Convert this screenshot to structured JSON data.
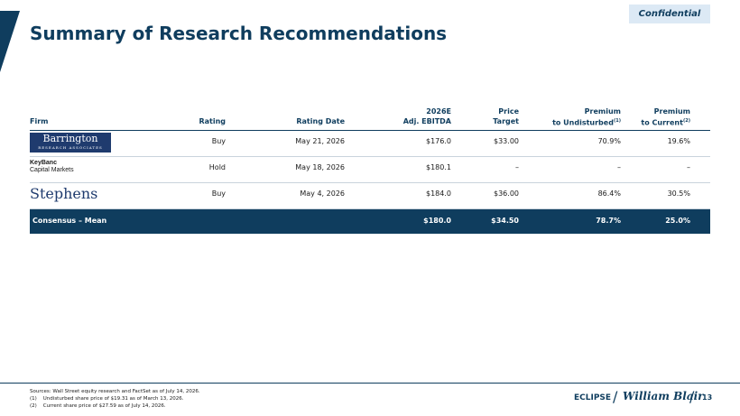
{
  "header": {
    "badge": "Confidential",
    "title": "Summary of Research Recommendations"
  },
  "table": {
    "columns": [
      {
        "lines": [
          "Firm"
        ]
      },
      {
        "lines": [
          "Rating"
        ]
      },
      {
        "lines": [
          "Rating Date"
        ]
      },
      {
        "lines": [
          "2026E",
          "Adj. EBITDA"
        ]
      },
      {
        "lines": [
          "Price",
          "Target"
        ]
      },
      {
        "lines": [
          "Premium",
          "to Undisturbed"
        ],
        "note": "(1)"
      },
      {
        "lines": [
          "Premium",
          "to Current"
        ],
        "note": "(2)"
      }
    ],
    "rows": [
      {
        "firm": {
          "name": "Barrington",
          "sub": "RESEARCH ASSOCIATES"
        },
        "cells": [
          "Buy",
          "May 21, 2026",
          "$176.0",
          "$33.00",
          "70.9%",
          "19.6%"
        ]
      },
      {
        "firm": {
          "name": "KeyBanc",
          "sub": "Capital Markets"
        },
        "cells": [
          "Hold",
          "May 18, 2026",
          "$180.1",
          "–",
          "–",
          "–"
        ]
      },
      {
        "firm": {
          "name": "Stephens"
        },
        "cells": [
          "Buy",
          "May 4, 2026",
          "$184.0",
          "$36.00",
          "86.4%",
          "30.5%"
        ]
      }
    ],
    "summary": {
      "label": "Consensus – Mean",
      "cells": [
        "",
        "",
        "$180.0",
        "$34.50",
        "78.7%",
        "25.0%"
      ]
    }
  },
  "footnotes": [
    "Sources: Wall Street equity research and FactSet as of July 14, 2026.",
    "(1)    Undisturbed share price of $19.31 as of March 13, 2026.",
    "(2)    Current share price of $27.59 as of July 14, 2026."
  ],
  "footer": {
    "brand": "ECLIPSE",
    "bank": "William Blair",
    "page": "13"
  }
}
